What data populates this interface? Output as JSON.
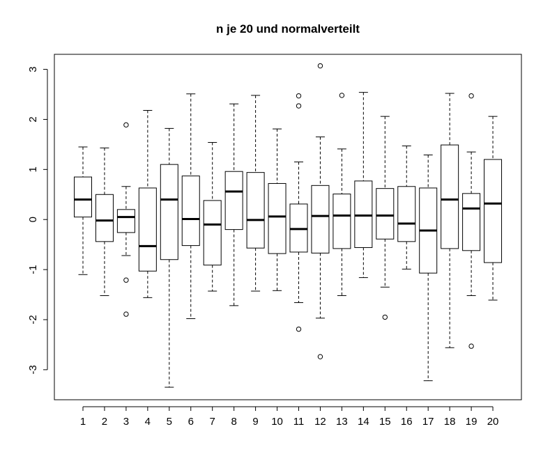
{
  "chart_data": {
    "type": "boxplot",
    "title": "n je 20 und normalverteilt",
    "xlabel": "",
    "ylabel": "",
    "ylim": [
      -3.6,
      3.3
    ],
    "yticks": [
      -3,
      -2,
      -1,
      0,
      1,
      2,
      3
    ],
    "grid": false,
    "categories": [
      "1",
      "2",
      "3",
      "4",
      "5",
      "6",
      "7",
      "8",
      "9",
      "10",
      "11",
      "12",
      "13",
      "14",
      "15",
      "16",
      "17",
      "18",
      "19",
      "20"
    ],
    "boxes": [
      {
        "lower": -1.1,
        "q1": 0.05,
        "median": 0.4,
        "q3": 0.85,
        "upper": 1.45,
        "outliers": []
      },
      {
        "lower": -1.52,
        "q1": -0.44,
        "median": -0.02,
        "q3": 0.5,
        "upper": 1.43,
        "outliers": []
      },
      {
        "lower": -0.72,
        "q1": -0.26,
        "median": 0.05,
        "q3": 0.2,
        "upper": 0.66,
        "outliers": [
          1.89,
          -1.21,
          -1.89
        ]
      },
      {
        "lower": -1.56,
        "q1": -1.03,
        "median": -0.53,
        "q3": 0.63,
        "upper": 2.18,
        "outliers": []
      },
      {
        "lower": -3.35,
        "q1": -0.8,
        "median": 0.4,
        "q3": 1.1,
        "upper": 1.82,
        "outliers": []
      },
      {
        "lower": -1.98,
        "q1": -0.52,
        "median": 0.01,
        "q3": 0.87,
        "upper": 2.51,
        "outliers": []
      },
      {
        "lower": -1.43,
        "q1": -0.91,
        "median": -0.1,
        "q3": 0.38,
        "upper": 1.54,
        "outliers": []
      },
      {
        "lower": -1.72,
        "q1": -0.2,
        "median": 0.56,
        "q3": 0.96,
        "upper": 2.31,
        "outliers": []
      },
      {
        "lower": -1.43,
        "q1": -0.57,
        "median": -0.01,
        "q3": 0.94,
        "upper": 2.48,
        "outliers": []
      },
      {
        "lower": -1.42,
        "q1": -0.68,
        "median": 0.06,
        "q3": 0.72,
        "upper": 1.81,
        "outliers": []
      },
      {
        "lower": -1.66,
        "q1": -0.65,
        "median": -0.19,
        "q3": 0.31,
        "upper": 1.15,
        "outliers": [
          2.47,
          2.27,
          -2.19
        ]
      },
      {
        "lower": -1.97,
        "q1": -0.67,
        "median": 0.07,
        "q3": 0.68,
        "upper": 1.65,
        "outliers": [
          3.07,
          -2.74
        ]
      },
      {
        "lower": -1.52,
        "q1": -0.58,
        "median": 0.08,
        "q3": 0.51,
        "upper": 1.41,
        "outliers": [
          2.48
        ]
      },
      {
        "lower": -1.16,
        "q1": -0.56,
        "median": 0.08,
        "q3": 0.77,
        "upper": 2.54,
        "outliers": []
      },
      {
        "lower": -1.35,
        "q1": -0.39,
        "median": 0.08,
        "q3": 0.62,
        "upper": 2.06,
        "outliers": [
          -1.95
        ]
      },
      {
        "lower": -0.99,
        "q1": -0.44,
        "median": -0.08,
        "q3": 0.66,
        "upper": 1.47,
        "outliers": []
      },
      {
        "lower": -3.22,
        "q1": -1.07,
        "median": -0.22,
        "q3": 0.63,
        "upper": 1.29,
        "outliers": []
      },
      {
        "lower": -2.56,
        "q1": -0.58,
        "median": 0.4,
        "q3": 1.49,
        "upper": 2.52,
        "outliers": []
      },
      {
        "lower": -1.52,
        "q1": -0.62,
        "median": 0.22,
        "q3": 0.52,
        "upper": 1.35,
        "outliers": [
          2.47,
          -2.53
        ]
      },
      {
        "lower": -1.61,
        "q1": -0.86,
        "median": 0.32,
        "q3": 1.2,
        "upper": 2.06,
        "outliers": []
      }
    ]
  }
}
